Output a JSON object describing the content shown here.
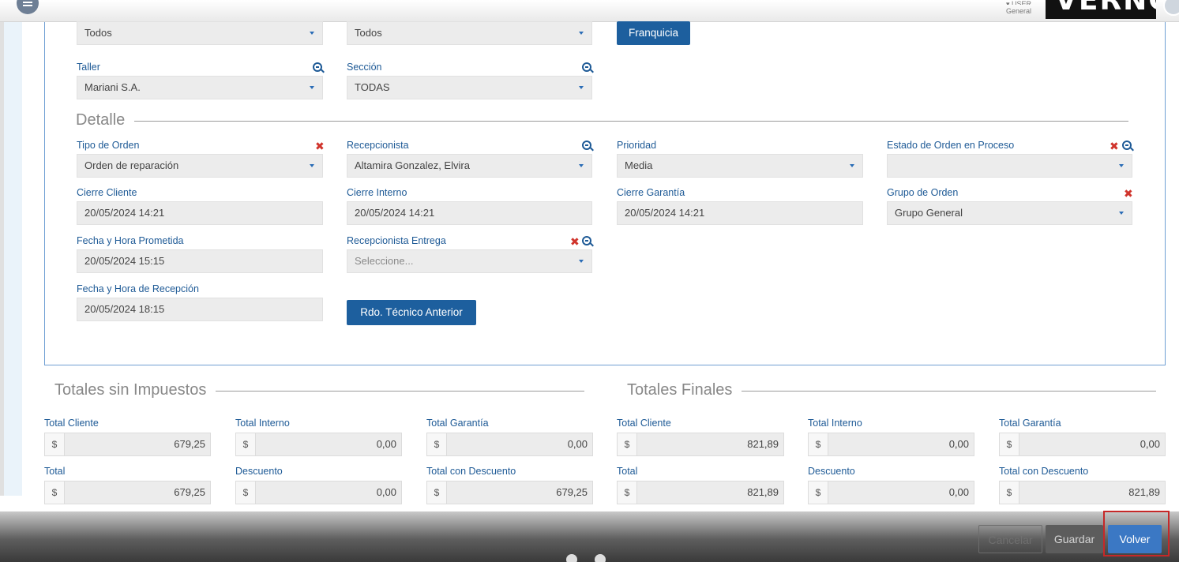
{
  "topbar": {
    "user_line": "▾ USER",
    "company": "General",
    "brand_text": "VERNON"
  },
  "filters": {
    "row1_col1_value": "Todos",
    "row1_col2_value": "Todos",
    "franquicia_button": "Franquicia",
    "taller_label": "Taller",
    "taller_value": "Mariani S.A.",
    "seccion_label": "Sección",
    "seccion_value": "TODAS"
  },
  "detalle": {
    "title": "Detalle",
    "tipo_orden_label": "Tipo de Orden",
    "tipo_orden_value": "Orden de reparación",
    "recepcionista_label": "Recepcionista",
    "recepcionista_value": "Altamira Gonzalez, Elvira",
    "prioridad_label": "Prioridad",
    "prioridad_value": "Media",
    "estado_label": "Estado de Orden en Proceso",
    "estado_value": "",
    "cierre_cliente_label": "Cierre Cliente",
    "cierre_cliente_value": "20/05/2024 14:21",
    "cierre_interno_label": "Cierre Interno",
    "cierre_interno_value": "20/05/2024 14:21",
    "cierre_garantia_label": "Cierre Garantía",
    "cierre_garantia_value": "20/05/2024 14:21",
    "grupo_orden_label": "Grupo de Orden",
    "grupo_orden_value": "Grupo General",
    "fecha_prometida_label": "Fecha y Hora Prometida",
    "fecha_prometida_value": "20/05/2024 15:15",
    "recep_entrega_label": "Recepcionista Entrega",
    "recep_entrega_placeholder": "Seleccione...",
    "fecha_recepcion_label": "Fecha y Hora de Recepción",
    "fecha_recepcion_value": "20/05/2024 18:15",
    "rdo_button": "Rdo. Técnico Anterior"
  },
  "totales_sin": {
    "title": "Totales sin Impuestos",
    "currency": "$",
    "fields": [
      {
        "label": "Total Cliente",
        "value": "679,25"
      },
      {
        "label": "Total Interno",
        "value": "0,00"
      },
      {
        "label": "Total Garantía",
        "value": "0,00"
      },
      {
        "label": "Total",
        "value": "679,25"
      },
      {
        "label": "Descuento",
        "value": "0,00"
      },
      {
        "label": "Total con Descuento",
        "value": "679,25"
      }
    ]
  },
  "totales_finales": {
    "title": "Totales Finales",
    "currency": "$",
    "fields": [
      {
        "label": "Total Cliente",
        "value": "821,89"
      },
      {
        "label": "Total Interno",
        "value": "0,00"
      },
      {
        "label": "Total Garantía",
        "value": "0,00"
      },
      {
        "label": "Total",
        "value": "821,89"
      },
      {
        "label": "Descuento",
        "value": "0,00"
      },
      {
        "label": "Total con Descuento",
        "value": "821,89"
      }
    ]
  },
  "footer": {
    "cancel": "Cancelar",
    "save": "Guardar",
    "back": "Volver"
  }
}
